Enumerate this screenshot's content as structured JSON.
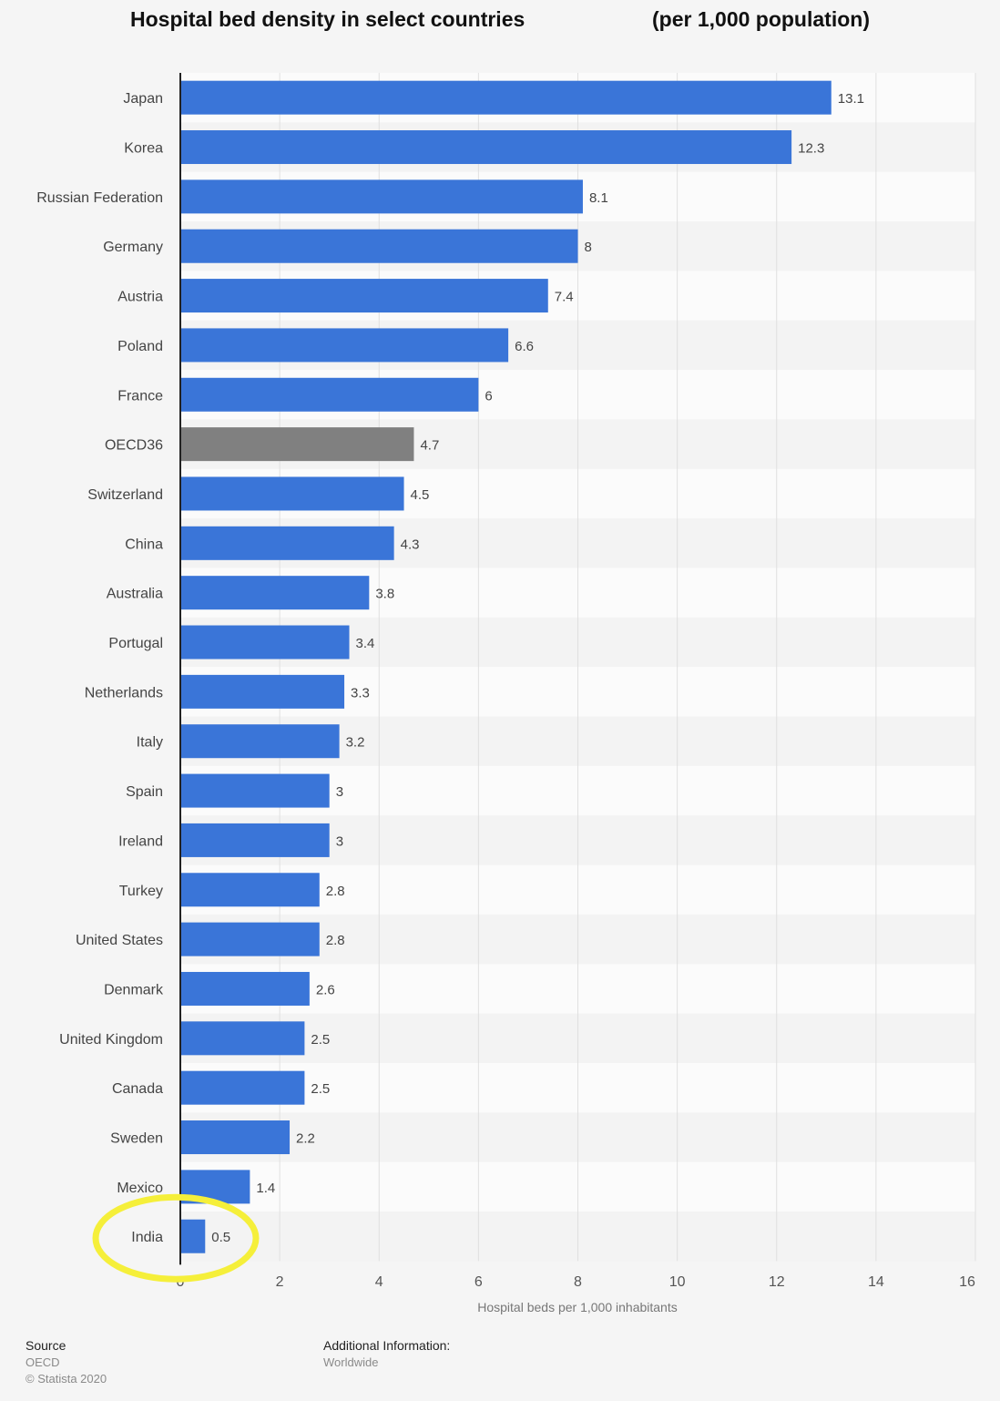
{
  "header": {
    "title": "Hospital bed density in select countries",
    "unit_note": "(per 1,000 population)"
  },
  "chart_data": {
    "type": "bar",
    "orientation": "horizontal",
    "categories": [
      "Japan",
      "Korea",
      "Russian Federation",
      "Germany",
      "Austria",
      "Poland",
      "France",
      "OECD36",
      "Switzerland",
      "China",
      "Australia",
      "Portugal",
      "Netherlands",
      "Italy",
      "Spain",
      "Ireland",
      "Turkey",
      "United States",
      "Denmark",
      "United Kingdom",
      "Canada",
      "Sweden",
      "Mexico",
      "India"
    ],
    "values": [
      13.1,
      12.3,
      8.1,
      8,
      7.4,
      6.6,
      6,
      4.7,
      4.5,
      4.3,
      3.8,
      3.4,
      3.3,
      3.2,
      3,
      3,
      2.8,
      2.8,
      2.6,
      2.5,
      2.5,
      2.2,
      1.4,
      0.5
    ],
    "value_labels": [
      "13.1",
      "12.3",
      "8.1",
      "8",
      "7.4",
      "6.6",
      "6",
      "4.7",
      "4.5",
      "4.3",
      "3.8",
      "3.4",
      "3.3",
      "3.2",
      "3",
      "3",
      "2.8",
      "2.8",
      "2.6",
      "2.5",
      "2.5",
      "2.2",
      "1.4",
      "0.5"
    ],
    "xlabel": "Hospital beds per 1,000 inhabitants",
    "ylabel": "",
    "xlim": [
      0,
      16
    ],
    "xticks": [
      "0",
      "2",
      "4",
      "6",
      "8",
      "10",
      "12",
      "14",
      "16"
    ],
    "grid": true,
    "colors": {
      "bar": "#3a75d8",
      "highlight_bar": "#808080",
      "annotation_circle": "#f5ef3a"
    },
    "highlighted_category": "OECD36",
    "annotated_category": "India"
  },
  "footer": {
    "source_label": "Source",
    "source_value": "OECD",
    "copyright": "© Statista 2020",
    "info_label": "Additional Information:",
    "info_value": "Worldwide"
  }
}
